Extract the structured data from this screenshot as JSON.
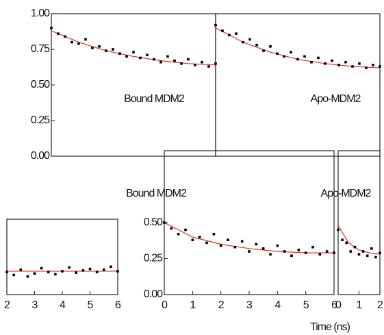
{
  "chart_data": [
    {
      "type": "scatter",
      "title": "Bound MDM2",
      "x": [
        0,
        0.25,
        0.5,
        0.75,
        1,
        1.25,
        1.5,
        1.75,
        2,
        2.25,
        2.5,
        2.75,
        3,
        3.25,
        3.5,
        3.75,
        4,
        4.25,
        4.5,
        4.75,
        5,
        5.25,
        5.5,
        5.75,
        6
      ],
      "values": [
        0.9,
        0.86,
        0.84,
        0.8,
        0.79,
        0.82,
        0.76,
        0.77,
        0.74,
        0.75,
        0.72,
        0.7,
        0.73,
        0.69,
        0.71,
        0.68,
        0.66,
        0.7,
        0.67,
        0.65,
        0.68,
        0.64,
        0.66,
        0.63,
        0.65
      ],
      "fit_x": [
        0,
        1,
        2,
        3,
        4,
        5,
        6
      ],
      "fit_values": [
        0.88,
        0.8,
        0.74,
        0.7,
        0.67,
        0.65,
        0.64
      ],
      "color": "#000000",
      "fit_color": "#e03020",
      "xlim": [
        0,
        6
      ],
      "ylim": [
        0,
        1
      ],
      "yticks": [
        {
          "value": 1,
          "label": "1.00"
        },
        {
          "value": 0.75,
          "label": "0.75"
        },
        {
          "value": 0.5,
          "label": "0.50"
        },
        {
          "value": 0.25,
          "label": "0.25"
        },
        {
          "value": 0,
          "label": "0.00"
        }
      ]
    },
    {
      "type": "scatter",
      "title": "Apo-MDM2",
      "x": [
        0,
        0.25,
        0.5,
        0.75,
        1,
        1.25,
        1.5,
        1.75,
        2,
        2.25,
        2.5,
        2.75,
        3,
        3.25,
        3.5,
        3.75,
        4,
        4.25,
        4.5,
        4.75,
        5,
        5.25,
        5.5,
        5.75,
        6
      ],
      "values": [
        0.92,
        0.88,
        0.85,
        0.86,
        0.8,
        0.82,
        0.78,
        0.74,
        0.77,
        0.72,
        0.7,
        0.73,
        0.68,
        0.7,
        0.66,
        0.69,
        0.65,
        0.67,
        0.64,
        0.66,
        0.63,
        0.65,
        0.62,
        0.64,
        0.63
      ],
      "fit_x": [
        0,
        1,
        2,
        3,
        4,
        5,
        6
      ],
      "fit_values": [
        0.9,
        0.8,
        0.73,
        0.68,
        0.65,
        0.63,
        0.62
      ],
      "color": "#000000",
      "fit_color": "#e03020",
      "xlim": [
        0,
        6
      ],
      "ylim": [
        0,
        1
      ]
    },
    {
      "type": "scatter",
      "title": "Bound MDM2",
      "xlabel": "Time (ns)",
      "x": [
        0,
        0.25,
        0.5,
        0.75,
        1,
        1.25,
        1.5,
        1.75,
        2,
        2.25,
        2.5,
        2.75,
        3,
        3.25,
        3.5,
        3.75,
        4,
        4.25,
        4.5,
        4.75,
        5,
        5.25,
        5.5,
        5.75,
        6
      ],
      "values": [
        0.5,
        0.46,
        0.42,
        0.45,
        0.38,
        0.4,
        0.36,
        0.42,
        0.34,
        0.38,
        0.33,
        0.37,
        0.3,
        0.35,
        0.32,
        0.28,
        0.34,
        0.3,
        0.27,
        0.31,
        0.29,
        0.33,
        0.28,
        0.3,
        0.29
      ],
      "fit_x": [
        0,
        1,
        2,
        3,
        4,
        5,
        6
      ],
      "fit_values": [
        0.5,
        0.4,
        0.35,
        0.32,
        0.3,
        0.29,
        0.29
      ],
      "color": "#000000",
      "fit_color": "#e03020",
      "xlim": [
        0,
        6
      ],
      "ylim": [
        0,
        1
      ],
      "xticks": [
        0,
        1,
        2,
        3,
        4,
        5,
        6
      ],
      "yticks": [
        {
          "value": 0.5,
          "label": "0.50"
        },
        {
          "value": 0.25,
          "label": "0.25"
        },
        {
          "value": 0,
          "label": "0.00"
        }
      ]
    },
    {
      "type": "scatter",
      "title": "Apo-MDM2",
      "x": [
        0,
        0.2,
        0.4,
        0.6,
        0.8,
        1,
        1.2,
        1.4,
        1.6,
        1.8,
        2
      ],
      "values": [
        0.45,
        0.38,
        0.36,
        0.3,
        0.33,
        0.28,
        0.3,
        0.27,
        0.32,
        0.26,
        0.29
      ],
      "fit_x": [
        0,
        0.5,
        1,
        1.5,
        2
      ],
      "fit_values": [
        0.48,
        0.36,
        0.31,
        0.29,
        0.28
      ],
      "color": "#000000",
      "fit_color": "#e03020",
      "xlim": [
        0,
        2
      ],
      "ylim": [
        0,
        1
      ],
      "xticks": [
        0,
        1,
        2
      ]
    },
    {
      "type": "scatter",
      "x": [
        2,
        2.25,
        2.5,
        2.75,
        3,
        3.25,
        3.5,
        3.75,
        4,
        4.25,
        4.5,
        4.75,
        5,
        5.25,
        5.5,
        5.75,
        6
      ],
      "values": [
        0.3,
        0.26,
        0.33,
        0.24,
        0.28,
        0.35,
        0.3,
        0.27,
        0.31,
        0.36,
        0.29,
        0.32,
        0.34,
        0.3,
        0.33,
        0.37,
        0.31
      ],
      "fit_x": [
        2,
        6
      ],
      "fit_values": [
        0.31,
        0.31
      ],
      "color": "#000000",
      "fit_color": "#e03020",
      "xlim": [
        2,
        6
      ],
      "ylim": [
        0,
        1
      ],
      "xticks": [
        2,
        3,
        4,
        5,
        6
      ]
    }
  ]
}
